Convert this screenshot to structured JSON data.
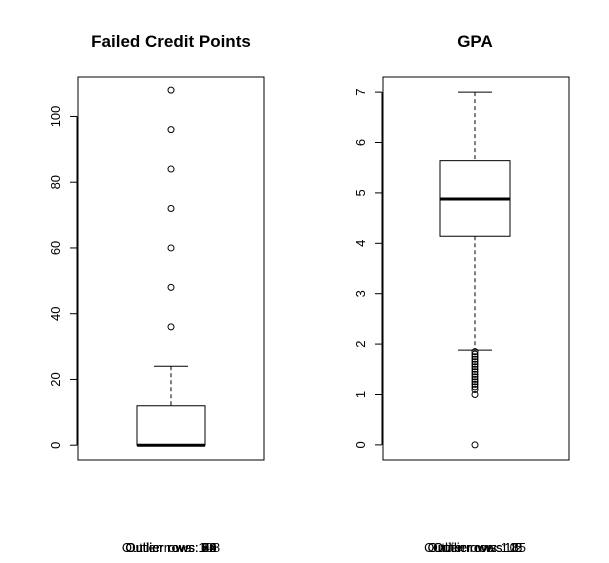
{
  "chart_data": [
    {
      "type": "boxplot",
      "title": "Failed Credit Points",
      "xlabel": "",
      "ylabel": "",
      "ylim": [
        -4.5,
        112
      ],
      "yticks": [
        0,
        20,
        40,
        60,
        80,
        100
      ],
      "grid": false,
      "stats": {
        "min": 0,
        "q1": 0,
        "median": 0,
        "q3": 12,
        "max": 24
      },
      "outliers": [
        36,
        48,
        60,
        72,
        84,
        96,
        108
      ],
      "footer_texts": [
        "Outlier rows: 108",
        "Outlier rows: 96",
        "Outlier rows: 84",
        "Outlier rows: 72",
        "Outlier rows: 60",
        "Outlier rows: 48",
        "Outlier rows: 36"
      ]
    },
    {
      "type": "boxplot",
      "title": "GPA",
      "xlabel": "",
      "ylabel": "",
      "ylim": [
        -0.3,
        7.3
      ],
      "yticks": [
        0,
        1,
        2,
        3,
        4,
        5,
        6,
        7
      ],
      "grid": false,
      "stats": {
        "min": 1.88,
        "q1": 4.14,
        "median": 4.88,
        "q3": 5.64,
        "max": 7.0
      },
      "outliers": [
        1.85,
        1.8,
        1.75,
        1.7,
        1.65,
        1.6,
        1.55,
        1.5,
        1.45,
        1.4,
        1.35,
        1.3,
        1.25,
        1.2,
        1.15,
        1.1,
        1.0,
        0
      ],
      "footer_texts": [
        "Outlier rows: 1.85",
        "Outlier rows: 1.5",
        "Outlier rows: 1.2",
        "Outlier rows: 1",
        "Outlier rows: 0"
      ]
    }
  ]
}
